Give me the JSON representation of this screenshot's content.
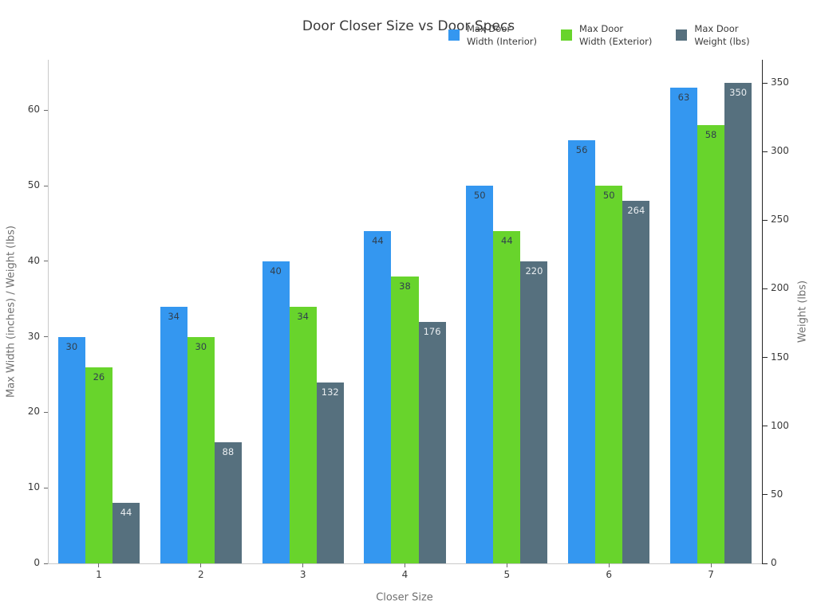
{
  "title": "Door Closer Size vs Door Specs",
  "legend": {
    "entries": [
      {
        "line1": "Max Door",
        "line2": "Width (Interior)",
        "color": "#3497f0"
      },
      {
        "line1": "Max Door",
        "line2": "Width (Exterior)",
        "color": "#68d42c"
      },
      {
        "line1": "Max Door",
        "line2": "Weight (lbs)",
        "color": "#56707e"
      }
    ]
  },
  "axes": {
    "xlabel": "Closer Size",
    "ylabel_left": "Max Width (inches) / Weight (lbs)",
    "ylabel_right": "Weight (lbs)"
  },
  "chart_data": {
    "type": "bar",
    "title": "Door Closer Size vs Door Specs",
    "categories": [
      "1",
      "2",
      "3",
      "4",
      "5",
      "6",
      "7"
    ],
    "xlabel": "Closer Size",
    "ylabel_left": "Max Width (inches) / Weight (lbs)",
    "ylabel_right": "Weight (lbs)",
    "grid": false,
    "legend_position": "top-right",
    "left_axis": {
      "ticks": [
        0,
        10,
        20,
        30,
        40,
        50,
        60
      ],
      "lim": [
        0,
        66.7
      ]
    },
    "right_axis": {
      "ticks": [
        0,
        50,
        100,
        150,
        200,
        250,
        300,
        350
      ],
      "lim": [
        0,
        366.9
      ]
    },
    "series": [
      {
        "id": "interior",
        "name": "Max Door Width (Interior)",
        "axis": "left",
        "color": "#3497f0",
        "label_color": "#31404e",
        "values": [
          30,
          34,
          40,
          44,
          50,
          56,
          63
        ]
      },
      {
        "id": "exterior",
        "name": "Max Door Width (Exterior)",
        "axis": "left",
        "color": "#68d42c",
        "label_color": "#31404e",
        "values": [
          26,
          30,
          34,
          38,
          44,
          50,
          58
        ]
      },
      {
        "id": "weight",
        "name": "Max Door Weight (lbs)",
        "axis": "right",
        "color": "#56707e",
        "label_color": "#e9edf0",
        "values": [
          44,
          88,
          132,
          176,
          220,
          264,
          350
        ]
      }
    ]
  }
}
